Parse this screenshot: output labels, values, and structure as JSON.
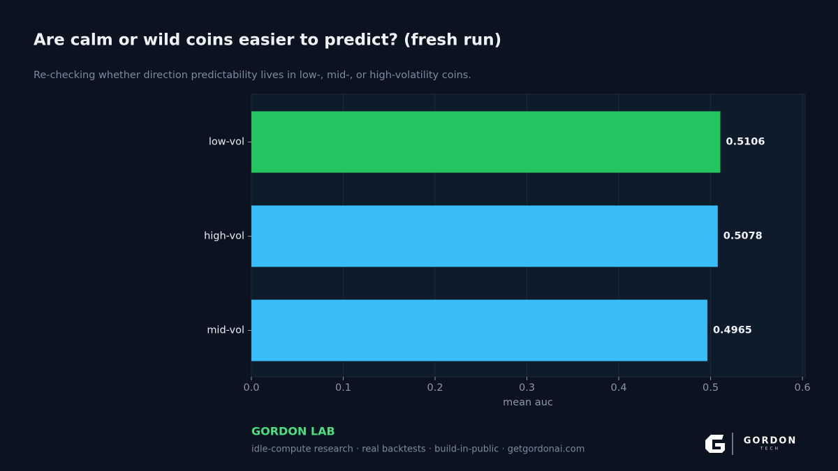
{
  "chart_data": {
    "type": "barh",
    "title": "Are calm or wild coins easier to predict? (fresh run)",
    "subtitle": "Re-checking whether direction predictability lives in low-, mid-, or high-volatility coins.",
    "x_label": "mean auc",
    "categories": [
      "low-vol",
      "high-vol",
      "mid-vol"
    ],
    "values": [
      0.5106,
      0.5078,
      0.4965
    ],
    "colors": [
      "#22c55e",
      "#38bdf8",
      "#38bdf8"
    ],
    "xlim": [
      0,
      0.603
    ],
    "xticks": [
      {
        "value": 0,
        "label": "0.0"
      },
      0.1,
      0.2,
      0.3,
      0.4,
      0.5,
      0.6
    ],
    "grid": true
  },
  "footer": {
    "brand": "GORDON LAB",
    "tagline": "idle-compute research · real backtests · build-in-public · getgordonai.com",
    "logo_name": "GORDON",
    "logo_sub": "TECH"
  }
}
